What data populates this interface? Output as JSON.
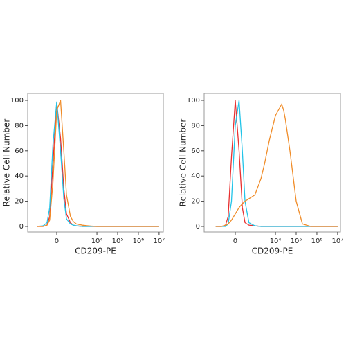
{
  "chart_data": [
    {
      "type": "line",
      "x_label": "CD209-PE",
      "y_label": "Relative Cell Number",
      "xscale": "biex",
      "xlim": [
        -2900,
        16000000
      ],
      "ylim": [
        -4.4,
        105.5
      ],
      "xticks": [
        0,
        {
          "value": 10000,
          "label": "10⁴"
        },
        {
          "value": 100000,
          "label": "10⁵"
        },
        {
          "value": 1000000,
          "label": "10⁶"
        },
        {
          "value": 10000000,
          "label": "10⁷"
        }
      ],
      "yticks": [
        0,
        20,
        40,
        60,
        80,
        100
      ],
      "x": [
        -1000,
        -500,
        -300,
        -200,
        -100,
        0,
        100,
        200,
        300,
        500,
        700,
        1000,
        2000,
        5000,
        10000,
        100000,
        1000000,
        10000000
      ],
      "series": [
        {
          "color": "#e83030",
          "values": [
            0,
            0,
            1,
            8,
            50,
            98,
            70,
            30,
            10,
            3,
            1,
            0.5,
            0,
            0,
            0,
            0,
            0,
            0
          ]
        },
        {
          "color": "#22c4e8",
          "values": [
            0,
            0.5,
            3,
            15,
            65,
            99,
            60,
            22,
            6,
            2,
            1,
            0.5,
            0,
            0,
            0,
            0,
            0,
            0
          ]
        },
        {
          "color": "#f08c28",
          "values": [
            0,
            0,
            1,
            5,
            35,
            92,
            100,
            60,
            25,
            8,
            4,
            2,
            1,
            0.3,
            0,
            0,
            0,
            0
          ]
        }
      ]
    },
    {
      "type": "line",
      "x_label": "CD209-PE",
      "y_label": "Relative Cell Number",
      "xscale": "biex",
      "xlim": [
        -3650,
        13700000
      ],
      "ylim": [
        -4.4,
        105.5
      ],
      "xticks": [
        0,
        {
          "value": 10000,
          "label": "10⁴"
        },
        {
          "value": 100000,
          "label": "10⁵"
        },
        {
          "value": 1000000,
          "label": "10⁶"
        },
        {
          "value": 10000000,
          "label": "10⁷"
        }
      ],
      "yticks": [
        0,
        20,
        40,
        60,
        80,
        100
      ],
      "x": [
        -1000,
        -500,
        -300,
        -200,
        -100,
        0,
        100,
        200,
        300,
        500,
        1000,
        2000,
        3000,
        5000,
        10000,
        20000,
        25000,
        30000,
        50000,
        100000,
        200000,
        500000,
        1000000,
        10000000
      ],
      "series": [
        {
          "color": "#e83030",
          "values": [
            0,
            0,
            1,
            8,
            55,
            100,
            60,
            15,
            3,
            1,
            0.5,
            0,
            0,
            0,
            0,
            0,
            0,
            0,
            0,
            0,
            0,
            0,
            0,
            0
          ]
        },
        {
          "color": "#22c4e8",
          "values": [
            0,
            0,
            0,
            2,
            20,
            80,
            100,
            60,
            20,
            3,
            0.5,
            0,
            0,
            0,
            0,
            0,
            0,
            0,
            0,
            0,
            0,
            0,
            0,
            0
          ]
        },
        {
          "color": "#f08c28",
          "values": [
            0,
            0,
            1,
            2,
            5,
            10,
            15,
            18,
            20,
            22,
            25,
            38,
            50,
            68,
            88,
            97,
            92,
            85,
            60,
            20,
            2,
            0,
            0,
            0
          ]
        }
      ]
    }
  ]
}
